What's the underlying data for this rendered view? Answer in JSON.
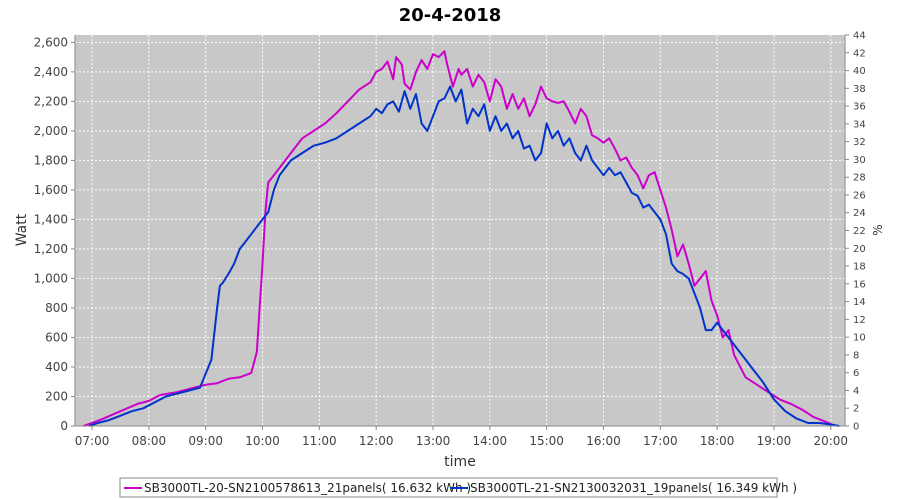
{
  "chart_data": {
    "type": "line",
    "title": "20-4-2018",
    "xlabel": "time",
    "ylabel": "Watt",
    "y2label": "%",
    "xlim": [
      6.7,
      20.25
    ],
    "ylim": [
      0,
      2650
    ],
    "y2lim": [
      0,
      44
    ],
    "x_ticks": [
      7,
      8,
      9,
      10,
      11,
      12,
      13,
      14,
      15,
      16,
      17,
      18,
      19,
      20
    ],
    "x_tick_labels": [
      "07:00",
      "08:00",
      "09:00",
      "10:00",
      "11:00",
      "12:00",
      "13:00",
      "14:00",
      "15:00",
      "16:00",
      "17:00",
      "18:00",
      "19:00",
      "20:00"
    ],
    "y_ticks": [
      0,
      200,
      400,
      600,
      800,
      1000,
      1200,
      1400,
      1600,
      1800,
      2000,
      2200,
      2400,
      2600
    ],
    "y_tick_labels": [
      "0",
      "200",
      "400",
      "600",
      "800",
      "1,000",
      "1,200",
      "1,400",
      "1,600",
      "1,800",
      "2,000",
      "2,200",
      "2,400",
      "2,600"
    ],
    "y2_ticks": [
      0,
      2,
      4,
      6,
      8,
      10,
      12,
      14,
      16,
      18,
      20,
      22,
      24,
      26,
      28,
      30,
      32,
      34,
      36,
      38,
      40,
      42,
      44
    ],
    "grid": true,
    "legend_position": "bottom",
    "series": [
      {
        "name": "SB3000TL-20-SN2100578613_21panels( 16.632 kWh )",
        "color": "#cc00cc",
        "x": [
          6.85,
          7.0,
          7.2,
          7.5,
          7.8,
          8.0,
          8.2,
          8.5,
          8.8,
          9.0,
          9.2,
          9.4,
          9.6,
          9.8,
          9.9,
          10.0,
          10.05,
          10.1,
          10.2,
          10.3,
          10.5,
          10.7,
          10.9,
          11.1,
          11.3,
          11.5,
          11.7,
          11.9,
          12.0,
          12.1,
          12.2,
          12.3,
          12.35,
          12.45,
          12.5,
          12.6,
          12.7,
          12.8,
          12.9,
          13.0,
          13.1,
          13.2,
          13.25,
          13.35,
          13.45,
          13.5,
          13.6,
          13.7,
          13.8,
          13.9,
          14.0,
          14.1,
          14.2,
          14.3,
          14.4,
          14.5,
          14.6,
          14.7,
          14.8,
          14.9,
          15.0,
          15.1,
          15.2,
          15.3,
          15.4,
          15.5,
          15.6,
          15.7,
          15.8,
          15.9,
          16.0,
          16.1,
          16.2,
          16.3,
          16.4,
          16.5,
          16.6,
          16.7,
          16.8,
          16.9,
          17.0,
          17.1,
          17.2,
          17.3,
          17.4,
          17.5,
          17.6,
          17.7,
          17.8,
          17.9,
          18.0,
          18.1,
          18.2,
          18.3,
          18.5,
          18.7,
          18.9,
          19.1,
          19.3,
          19.5,
          19.7,
          19.9,
          20.05
        ],
        "y": [
          0,
          20,
          50,
          100,
          150,
          170,
          210,
          230,
          260,
          280,
          290,
          320,
          330,
          360,
          500,
          1100,
          1450,
          1650,
          1700,
          1750,
          1850,
          1950,
          2000,
          2050,
          2120,
          2200,
          2280,
          2330,
          2400,
          2420,
          2470,
          2350,
          2500,
          2450,
          2320,
          2280,
          2400,
          2480,
          2420,
          2520,
          2500,
          2540,
          2450,
          2300,
          2420,
          2380,
          2420,
          2300,
          2380,
          2330,
          2200,
          2350,
          2300,
          2150,
          2250,
          2150,
          2220,
          2100,
          2180,
          2300,
          2220,
          2200,
          2190,
          2200,
          2130,
          2050,
          2150,
          2100,
          1970,
          1950,
          1920,
          1950,
          1880,
          1800,
          1820,
          1750,
          1700,
          1610,
          1700,
          1720,
          1600,
          1480,
          1330,
          1150,
          1230,
          1100,
          950,
          1000,
          1050,
          850,
          750,
          600,
          650,
          480,
          330,
          280,
          230,
          180,
          150,
          110,
          60,
          30,
          5
        ]
      },
      {
        "name": "SB3000TL-21-SN2130032031_19panels( 16.349 kWh )",
        "color": "#0033cc",
        "x": [
          6.95,
          7.1,
          7.3,
          7.5,
          7.7,
          7.9,
          8.1,
          8.3,
          8.5,
          8.7,
          8.9,
          9.1,
          9.2,
          9.25,
          9.3,
          9.4,
          9.5,
          9.6,
          9.7,
          9.8,
          9.9,
          10.0,
          10.1,
          10.2,
          10.3,
          10.5,
          10.7,
          10.9,
          11.1,
          11.3,
          11.5,
          11.7,
          11.9,
          12.0,
          12.1,
          12.2,
          12.3,
          12.4,
          12.5,
          12.6,
          12.7,
          12.8,
          12.9,
          13.0,
          13.1,
          13.2,
          13.3,
          13.4,
          13.5,
          13.6,
          13.7,
          13.8,
          13.9,
          14.0,
          14.1,
          14.2,
          14.3,
          14.4,
          14.5,
          14.6,
          14.7,
          14.8,
          14.9,
          15.0,
          15.1,
          15.2,
          15.3,
          15.4,
          15.5,
          15.6,
          15.7,
          15.8,
          15.9,
          16.0,
          16.1,
          16.2,
          16.3,
          16.4,
          16.5,
          16.6,
          16.7,
          16.8,
          16.9,
          17.0,
          17.1,
          17.2,
          17.3,
          17.4,
          17.5,
          17.6,
          17.7,
          17.8,
          17.9,
          18.0,
          18.2,
          18.4,
          18.6,
          18.8,
          19.0,
          19.2,
          19.4,
          19.6,
          19.8,
          20.0,
          20.15
        ],
        "y": [
          0,
          20,
          40,
          70,
          100,
          120,
          160,
          200,
          220,
          240,
          260,
          450,
          800,
          950,
          970,
          1030,
          1100,
          1200,
          1250,
          1300,
          1350,
          1400,
          1450,
          1600,
          1700,
          1800,
          1850,
          1900,
          1920,
          1950,
          2000,
          2050,
          2100,
          2150,
          2120,
          2180,
          2200,
          2130,
          2270,
          2150,
          2250,
          2050,
          2000,
          2100,
          2200,
          2220,
          2300,
          2200,
          2280,
          2050,
          2150,
          2100,
          2180,
          2000,
          2100,
          2000,
          2050,
          1950,
          2000,
          1880,
          1900,
          1800,
          1850,
          2050,
          1950,
          2000,
          1900,
          1950,
          1850,
          1800,
          1900,
          1800,
          1750,
          1700,
          1750,
          1700,
          1720,
          1650,
          1580,
          1560,
          1480,
          1500,
          1450,
          1400,
          1300,
          1100,
          1050,
          1030,
          1000,
          900,
          800,
          650,
          650,
          700,
          600,
          500,
          400,
          300,
          180,
          100,
          50,
          20,
          20,
          10,
          0
        ]
      }
    ]
  }
}
